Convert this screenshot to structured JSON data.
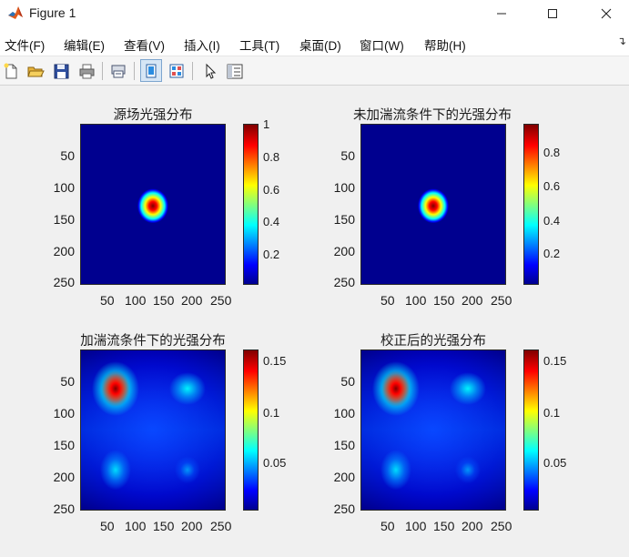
{
  "window": {
    "title": "Figure 1"
  },
  "menu": [
    "文件(F)",
    "编辑(E)",
    "查看(V)",
    "插入(I)",
    "工具(T)",
    "桌面(D)",
    "窗口(W)",
    "帮助(H)"
  ],
  "toolbar": [
    "new-figure-icon",
    "open-folder-icon",
    "save-icon",
    "print-icon",
    "print-preview-icon",
    "dock-figure-icon",
    "link-plot-icon",
    "pointer-icon",
    "property-editor-icon"
  ],
  "plots": [
    {
      "title": "源场光强分布",
      "yticks": [
        "50",
        "100",
        "150",
        "200",
        "250"
      ],
      "xticks": [
        "50",
        "100",
        "150",
        "200",
        "250"
      ],
      "cticks": [
        "1",
        "0.8",
        "0.6",
        "0.4",
        "0.2"
      ]
    },
    {
      "title": "未加湍流条件下的光强分布",
      "yticks": [
        "50",
        "100",
        "150",
        "200",
        "250"
      ],
      "xticks": [
        "50",
        "100",
        "150",
        "200",
        "250"
      ],
      "cticks": [
        "0.8",
        "0.6",
        "0.4",
        "0.2"
      ]
    },
    {
      "title": "加湍流条件下的光强分布",
      "yticks": [
        "50",
        "100",
        "150",
        "200",
        "250"
      ],
      "xticks": [
        "50",
        "100",
        "150",
        "200",
        "250"
      ],
      "cticks": [
        "0.15",
        "0.1",
        "0.05"
      ]
    },
    {
      "title": "校正后的光强分布",
      "yticks": [
        "50",
        "100",
        "150",
        "200",
        "250"
      ],
      "xticks": [
        "50",
        "100",
        "150",
        "200",
        "250"
      ],
      "cticks": [
        "0.15",
        "0.1",
        "0.05"
      ]
    }
  ],
  "colors": {
    "colormap": "jet"
  }
}
